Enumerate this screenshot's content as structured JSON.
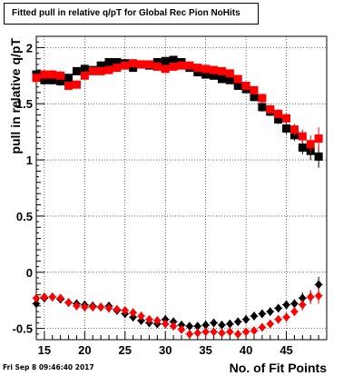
{
  "timestamp": "Fri Sep  8 09:46:40 2017",
  "chart_data": {
    "type": "scatter",
    "title": "Fitted pull in relative q/pT for Global Rec Pion NoHits",
    "xlabel": "No. of Fit Points",
    "ylabel": "pull in relative q/pT",
    "xlim": [
      14,
      50
    ],
    "ylim": [
      -0.6,
      2.1
    ],
    "xticks": [
      15,
      20,
      25,
      30,
      35,
      40,
      45
    ],
    "yticks": [
      -0.5,
      0,
      0.5,
      1,
      1.5,
      2
    ],
    "ytick_labels": [
      "-0.5",
      "0",
      "0.5",
      "1",
      "1.5",
      "2"
    ],
    "grid": true,
    "series": [
      {
        "marker": "square",
        "color": "#000000",
        "points": [
          {
            "x": 14,
            "y": 1.76,
            "err": 0.05
          },
          {
            "x": 15,
            "y": 1.71,
            "err": 0.04
          },
          {
            "x": 16,
            "y": 1.71,
            "err": 0.04
          },
          {
            "x": 17,
            "y": 1.7,
            "err": 0.04
          },
          {
            "x": 18,
            "y": 1.73,
            "err": 0.03
          },
          {
            "x": 19,
            "y": 1.79,
            "err": 0.03
          },
          {
            "x": 20,
            "y": 1.81,
            "err": 0.03
          },
          {
            "x": 21,
            "y": 1.8,
            "err": 0.03
          },
          {
            "x": 22,
            "y": 1.84,
            "err": 0.03
          },
          {
            "x": 23,
            "y": 1.87,
            "err": 0.03
          },
          {
            "x": 24,
            "y": 1.87,
            "err": 0.03
          },
          {
            "x": 25,
            "y": 1.86,
            "err": 0.03
          },
          {
            "x": 26,
            "y": 1.82,
            "err": 0.03
          },
          {
            "x": 27,
            "y": 1.85,
            "err": 0.03
          },
          {
            "x": 28,
            "y": 1.84,
            "err": 0.03
          },
          {
            "x": 29,
            "y": 1.87,
            "err": 0.03
          },
          {
            "x": 30,
            "y": 1.88,
            "err": 0.03
          },
          {
            "x": 31,
            "y": 1.89,
            "err": 0.03
          },
          {
            "x": 32,
            "y": 1.87,
            "err": 0.03
          },
          {
            "x": 33,
            "y": 1.82,
            "err": 0.03
          },
          {
            "x": 34,
            "y": 1.78,
            "err": 0.03
          },
          {
            "x": 35,
            "y": 1.76,
            "err": 0.03
          },
          {
            "x": 36,
            "y": 1.75,
            "err": 0.03
          },
          {
            "x": 37,
            "y": 1.72,
            "err": 0.03
          },
          {
            "x": 38,
            "y": 1.71,
            "err": 0.03
          },
          {
            "x": 39,
            "y": 1.66,
            "err": 0.03
          },
          {
            "x": 40,
            "y": 1.63,
            "err": 0.03
          },
          {
            "x": 41,
            "y": 1.56,
            "err": 0.03
          },
          {
            "x": 42,
            "y": 1.47,
            "err": 0.04
          },
          {
            "x": 43,
            "y": 1.43,
            "err": 0.04
          },
          {
            "x": 44,
            "y": 1.36,
            "err": 0.04
          },
          {
            "x": 45,
            "y": 1.28,
            "err": 0.05
          },
          {
            "x": 46,
            "y": 1.22,
            "err": 0.05
          },
          {
            "x": 47,
            "y": 1.11,
            "err": 0.06
          },
          {
            "x": 48,
            "y": 1.08,
            "err": 0.08
          },
          {
            "x": 49,
            "y": 1.03,
            "err": 0.1
          }
        ]
      },
      {
        "marker": "square",
        "color": "#ff0000",
        "points": [
          {
            "x": 14,
            "y": 1.73,
            "err": 0.04
          },
          {
            "x": 15,
            "y": 1.76,
            "err": 0.04
          },
          {
            "x": 16,
            "y": 1.76,
            "err": 0.04
          },
          {
            "x": 17,
            "y": 1.75,
            "err": 0.04
          },
          {
            "x": 18,
            "y": 1.66,
            "err": 0.03
          },
          {
            "x": 19,
            "y": 1.67,
            "err": 0.03
          },
          {
            "x": 20,
            "y": 1.75,
            "err": 0.03
          },
          {
            "x": 21,
            "y": 1.79,
            "err": 0.03
          },
          {
            "x": 22,
            "y": 1.79,
            "err": 0.03
          },
          {
            "x": 23,
            "y": 1.8,
            "err": 0.03
          },
          {
            "x": 24,
            "y": 1.82,
            "err": 0.03
          },
          {
            "x": 25,
            "y": 1.84,
            "err": 0.03
          },
          {
            "x": 26,
            "y": 1.86,
            "err": 0.03
          },
          {
            "x": 27,
            "y": 1.85,
            "err": 0.03
          },
          {
            "x": 28,
            "y": 1.85,
            "err": 0.03
          },
          {
            "x": 29,
            "y": 1.83,
            "err": 0.03
          },
          {
            "x": 30,
            "y": 1.81,
            "err": 0.03
          },
          {
            "x": 31,
            "y": 1.83,
            "err": 0.03
          },
          {
            "x": 32,
            "y": 1.84,
            "err": 0.03
          },
          {
            "x": 33,
            "y": 1.84,
            "err": 0.03
          },
          {
            "x": 34,
            "y": 1.82,
            "err": 0.03
          },
          {
            "x": 35,
            "y": 1.81,
            "err": 0.03
          },
          {
            "x": 36,
            "y": 1.8,
            "err": 0.03
          },
          {
            "x": 37,
            "y": 1.79,
            "err": 0.03
          },
          {
            "x": 38,
            "y": 1.77,
            "err": 0.03
          },
          {
            "x": 39,
            "y": 1.72,
            "err": 0.03
          },
          {
            "x": 40,
            "y": 1.66,
            "err": 0.03
          },
          {
            "x": 41,
            "y": 1.62,
            "err": 0.03
          },
          {
            "x": 42,
            "y": 1.55,
            "err": 0.04
          },
          {
            "x": 43,
            "y": 1.45,
            "err": 0.04
          },
          {
            "x": 44,
            "y": 1.41,
            "err": 0.04
          },
          {
            "x": 45,
            "y": 1.37,
            "err": 0.05
          },
          {
            "x": 46,
            "y": 1.27,
            "err": 0.05
          },
          {
            "x": 47,
            "y": 1.21,
            "err": 0.06
          },
          {
            "x": 48,
            "y": 1.14,
            "err": 0.08
          },
          {
            "x": 49,
            "y": 1.19,
            "err": 0.1
          }
        ]
      },
      {
        "marker": "diamond",
        "color": "#000000",
        "points": [
          {
            "x": 14,
            "y": -0.28,
            "err": 0.04
          },
          {
            "x": 15,
            "y": -0.23,
            "err": 0.03
          },
          {
            "x": 16,
            "y": -0.22,
            "err": 0.03
          },
          {
            "x": 17,
            "y": -0.24,
            "err": 0.03
          },
          {
            "x": 18,
            "y": -0.27,
            "err": 0.03
          },
          {
            "x": 19,
            "y": -0.28,
            "err": 0.03
          },
          {
            "x": 20,
            "y": -0.29,
            "err": 0.03
          },
          {
            "x": 21,
            "y": -0.3,
            "err": 0.03
          },
          {
            "x": 22,
            "y": -0.31,
            "err": 0.03
          },
          {
            "x": 23,
            "y": -0.3,
            "err": 0.03
          },
          {
            "x": 24,
            "y": -0.34,
            "err": 0.03
          },
          {
            "x": 25,
            "y": -0.37,
            "err": 0.03
          },
          {
            "x": 26,
            "y": -0.4,
            "err": 0.03
          },
          {
            "x": 27,
            "y": -0.43,
            "err": 0.03
          },
          {
            "x": 28,
            "y": -0.45,
            "err": 0.03
          },
          {
            "x": 29,
            "y": -0.46,
            "err": 0.03
          },
          {
            "x": 30,
            "y": -0.42,
            "err": 0.03
          },
          {
            "x": 31,
            "y": -0.44,
            "err": 0.03
          },
          {
            "x": 32,
            "y": -0.47,
            "err": 0.03
          },
          {
            "x": 33,
            "y": -0.48,
            "err": 0.03
          },
          {
            "x": 34,
            "y": -0.48,
            "err": 0.03
          },
          {
            "x": 35,
            "y": -0.47,
            "err": 0.03
          },
          {
            "x": 36,
            "y": -0.45,
            "err": 0.03
          },
          {
            "x": 37,
            "y": -0.47,
            "err": 0.03
          },
          {
            "x": 38,
            "y": -0.46,
            "err": 0.03
          },
          {
            "x": 39,
            "y": -0.44,
            "err": 0.03
          },
          {
            "x": 40,
            "y": -0.42,
            "err": 0.03
          },
          {
            "x": 41,
            "y": -0.39,
            "err": 0.03
          },
          {
            "x": 42,
            "y": -0.37,
            "err": 0.03
          },
          {
            "x": 43,
            "y": -0.35,
            "err": 0.03
          },
          {
            "x": 44,
            "y": -0.32,
            "err": 0.03
          },
          {
            "x": 45,
            "y": -0.29,
            "err": 0.04
          },
          {
            "x": 46,
            "y": -0.28,
            "err": 0.04
          },
          {
            "x": 47,
            "y": -0.23,
            "err": 0.05
          },
          {
            "x": 48,
            "y": -0.22,
            "err": 0.06
          },
          {
            "x": 49,
            "y": -0.11,
            "err": 0.07
          }
        ]
      },
      {
        "marker": "diamond",
        "color": "#ff0000",
        "points": [
          {
            "x": 14,
            "y": -0.23,
            "err": 0.04
          },
          {
            "x": 15,
            "y": -0.22,
            "err": 0.03
          },
          {
            "x": 16,
            "y": -0.22,
            "err": 0.03
          },
          {
            "x": 17,
            "y": -0.23,
            "err": 0.03
          },
          {
            "x": 18,
            "y": -0.27,
            "err": 0.03
          },
          {
            "x": 19,
            "y": -0.3,
            "err": 0.03
          },
          {
            "x": 20,
            "y": -0.31,
            "err": 0.03
          },
          {
            "x": 21,
            "y": -0.31,
            "err": 0.03
          },
          {
            "x": 22,
            "y": -0.31,
            "err": 0.03
          },
          {
            "x": 23,
            "y": -0.32,
            "err": 0.03
          },
          {
            "x": 24,
            "y": -0.33,
            "err": 0.03
          },
          {
            "x": 25,
            "y": -0.34,
            "err": 0.03
          },
          {
            "x": 26,
            "y": -0.36,
            "err": 0.03
          },
          {
            "x": 27,
            "y": -0.39,
            "err": 0.03
          },
          {
            "x": 28,
            "y": -0.42,
            "err": 0.03
          },
          {
            "x": 29,
            "y": -0.43,
            "err": 0.03
          },
          {
            "x": 30,
            "y": -0.46,
            "err": 0.03
          },
          {
            "x": 31,
            "y": -0.48,
            "err": 0.03
          },
          {
            "x": 32,
            "y": -0.51,
            "err": 0.03
          },
          {
            "x": 33,
            "y": -0.55,
            "err": 0.03
          },
          {
            "x": 34,
            "y": -0.54,
            "err": 0.03
          },
          {
            "x": 35,
            "y": -0.53,
            "err": 0.03
          },
          {
            "x": 36,
            "y": -0.53,
            "err": 0.03
          },
          {
            "x": 37,
            "y": -0.54,
            "err": 0.03
          },
          {
            "x": 38,
            "y": -0.53,
            "err": 0.03
          },
          {
            "x": 39,
            "y": -0.55,
            "err": 0.03
          },
          {
            "x": 40,
            "y": -0.53,
            "err": 0.03
          },
          {
            "x": 41,
            "y": -0.52,
            "err": 0.03
          },
          {
            "x": 42,
            "y": -0.49,
            "err": 0.03
          },
          {
            "x": 43,
            "y": -0.46,
            "err": 0.03
          },
          {
            "x": 44,
            "y": -0.42,
            "err": 0.03
          },
          {
            "x": 45,
            "y": -0.4,
            "err": 0.04
          },
          {
            "x": 46,
            "y": -0.35,
            "err": 0.04
          },
          {
            "x": 47,
            "y": -0.29,
            "err": 0.05
          },
          {
            "x": 48,
            "y": -0.22,
            "err": 0.06
          },
          {
            "x": 49,
            "y": -0.21,
            "err": 0.07
          }
        ]
      }
    ]
  }
}
